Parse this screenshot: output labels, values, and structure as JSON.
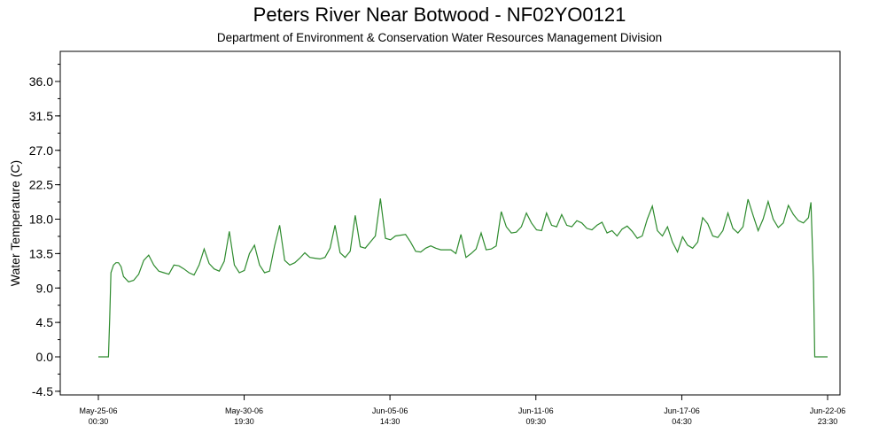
{
  "chart_data": {
    "type": "line",
    "title": "Peters River Near Botwood - NF02YO0121",
    "subtitle": "Department of Environment & Conservation Water Resources Management Division",
    "xlabel": "",
    "ylabel": "Water Temperature (C)",
    "ylim": [
      -4.5,
      40
    ],
    "yticks": [
      "-4.5",
      "0.0",
      "4.5",
      "9.0",
      "13.5",
      "18.0",
      "22.5",
      "27.0",
      "31.5",
      "36.0"
    ],
    "xlim": [
      -0.5,
      28.5
    ],
    "xticks": [
      {
        "day": 0,
        "line1": "May-25-06",
        "line2": "00:30"
      },
      {
        "day": 5.79,
        "line1": "May-30-06",
        "line2": "19:30"
      },
      {
        "day": 11.58,
        "line1": "Jun-05-06",
        "line2": "14:30"
      },
      {
        "day": 17.375,
        "line1": "Jun-11-06",
        "line2": "09:30"
      },
      {
        "day": 23.17,
        "line1": "Jun-17-06",
        "line2": "04:30"
      },
      {
        "day": 28.96,
        "line1": "Jun-22-06",
        "line2": "23:30"
      }
    ],
    "grid": false,
    "line_color": "#2e8b2e",
    "series": [
      {
        "name": "",
        "x": [
          0.0,
          0.3,
          0.4,
          0.45,
          0.5,
          0.6,
          0.7,
          0.8,
          0.9,
          1.0,
          1.2,
          1.4,
          1.6,
          1.8,
          2.0,
          2.2,
          2.4,
          2.6,
          2.8,
          3.0,
          3.2,
          3.4,
          3.6,
          3.8,
          4.0,
          4.2,
          4.4,
          4.6,
          4.8,
          5.0,
          5.2,
          5.4,
          5.6,
          5.8,
          6.0,
          6.2,
          6.4,
          6.6,
          6.8,
          7.0,
          7.2,
          7.4,
          7.6,
          7.8,
          8.0,
          8.2,
          8.4,
          8.6,
          8.8,
          9.0,
          9.2,
          9.4,
          9.6,
          9.8,
          10.0,
          10.2,
          10.4,
          10.6,
          10.8,
          11.0,
          11.2,
          11.4,
          11.6,
          11.8,
          12.0,
          12.2,
          12.4,
          12.6,
          12.8,
          13.0,
          13.2,
          13.4,
          13.6,
          13.8,
          14.0,
          14.2,
          14.4,
          14.6,
          14.8,
          15.0,
          15.2,
          15.4,
          15.6,
          15.8,
          16.0,
          16.2,
          16.4,
          16.6,
          16.8,
          17.0,
          17.2,
          17.4,
          17.6,
          17.8,
          18.0,
          18.2,
          18.4,
          18.6,
          18.8,
          19.0,
          19.2,
          19.4,
          19.6,
          19.8,
          20.0,
          20.2,
          20.4,
          20.6,
          20.8,
          21.0,
          21.2,
          21.4,
          21.6,
          21.8,
          22.0,
          22.2,
          22.4,
          22.6,
          22.8,
          23.0,
          23.2,
          23.4,
          23.6,
          23.8,
          24.0,
          24.2,
          24.4,
          24.6,
          24.8,
          25.0,
          25.2,
          25.4,
          25.6,
          25.8,
          26.0,
          26.2,
          26.4,
          26.6,
          26.8,
          27.0,
          27.2,
          27.4,
          27.6,
          27.8,
          28.0,
          28.2,
          28.3,
          28.4,
          28.45,
          28.5,
          28.6,
          28.8,
          28.96
        ],
        "y": [
          0.0,
          0.0,
          0.0,
          5.0,
          11.0,
          12.0,
          12.3,
          12.3,
          11.8,
          10.5,
          9.8,
          10.0,
          10.8,
          12.6,
          13.3,
          12.0,
          11.2,
          11.0,
          10.8,
          12.0,
          11.9,
          11.5,
          11.0,
          10.7,
          12.0,
          14.1,
          12.2,
          11.5,
          11.2,
          12.5,
          16.4,
          12.0,
          11.0,
          11.3,
          13.5,
          14.6,
          12.0,
          11.0,
          11.2,
          14.5,
          17.2,
          12.6,
          12.0,
          12.3,
          12.9,
          13.6,
          13.0,
          12.9,
          12.8,
          13.0,
          14.2,
          17.2,
          13.6,
          13.0,
          13.8,
          18.5,
          14.4,
          14.2,
          15.0,
          15.8,
          20.7,
          15.5,
          15.3,
          15.8,
          15.9,
          16.0,
          15.0,
          13.8,
          13.7,
          14.2,
          14.5,
          14.2,
          14.0,
          14.0,
          14.0,
          13.5,
          16.0,
          13.0,
          13.5,
          14.1,
          16.2,
          14.0,
          14.1,
          14.5,
          19.0,
          17.0,
          16.2,
          16.3,
          17.0,
          18.8,
          17.5,
          16.6,
          16.5,
          18.8,
          17.2,
          17.0,
          18.6,
          17.2,
          17.0,
          17.8,
          17.5,
          16.8,
          16.6,
          17.2,
          17.6,
          16.2,
          16.5,
          15.8,
          16.7,
          17.1,
          16.4,
          15.5,
          15.8,
          18.0,
          19.7,
          16.5,
          15.8,
          17.0,
          15.0,
          13.7,
          15.7,
          14.6,
          14.2,
          15.0,
          18.2,
          17.4,
          15.8,
          15.6,
          16.5,
          18.8,
          16.8,
          16.2,
          17.0,
          20.6,
          18.5,
          16.5,
          18.0,
          20.3,
          18.0,
          16.9,
          17.5,
          19.8,
          18.6,
          17.8,
          17.5,
          18.2,
          20.2,
          10.0,
          0.0,
          0.0,
          0.0,
          0.0,
          0.0
        ]
      }
    ]
  }
}
